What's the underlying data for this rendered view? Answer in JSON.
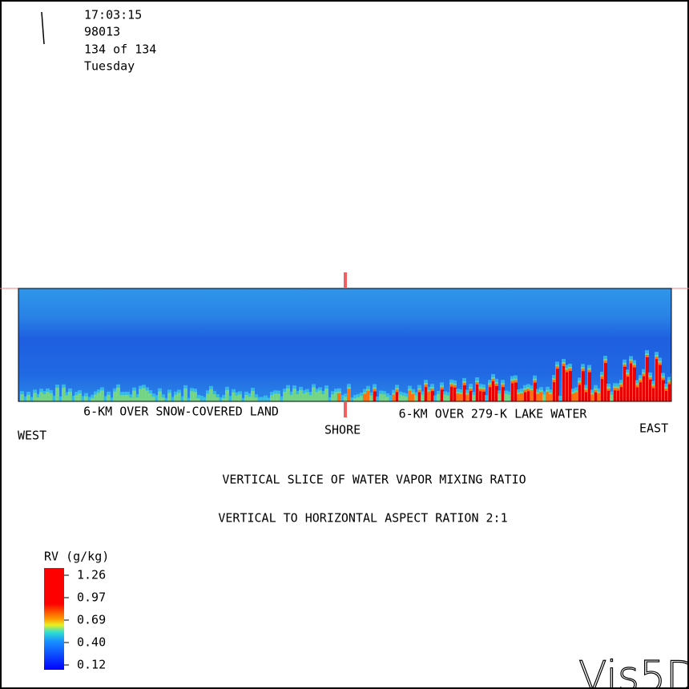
{
  "header": {
    "time": "17:03:15",
    "date": "98013",
    "step": "134 of 134",
    "day": "Tuesday"
  },
  "slice": {
    "left_label": "6-KM OVER SNOW-COVERED LAND",
    "right_label": "6-KM OVER 279-K LAKE WATER",
    "west": "WEST",
    "shore": "SHORE",
    "east": "EAST"
  },
  "captions": [
    "VERTICAL SLICE OF WATER VAPOR MIXING RATIO",
    "VERTICAL TO HORIZONTAL ASPECT RATION 2:1"
  ],
  "colorbar": {
    "title": "RV (g/kg)",
    "ticks": [
      "1.26",
      "0.97",
      "0.69",
      "0.40",
      "0.12"
    ]
  },
  "logo": "Vis5D"
}
